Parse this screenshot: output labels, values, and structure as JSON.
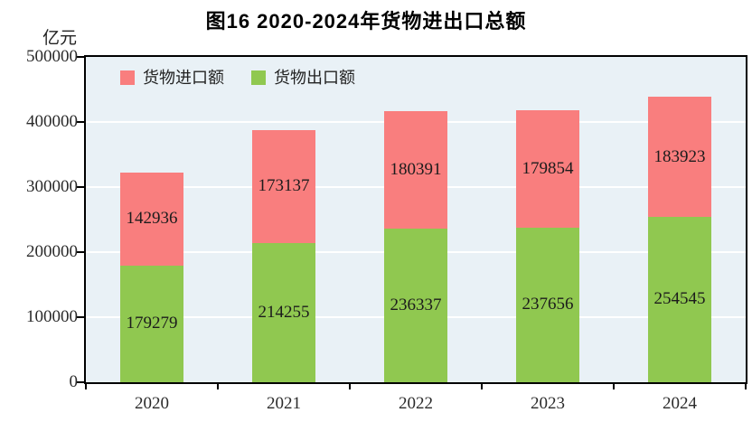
{
  "chart_data": {
    "type": "bar",
    "stacked": true,
    "title": "图16  2020-2024年货物进出口总额",
    "unit_label": "亿元",
    "categories": [
      "2020",
      "2021",
      "2022",
      "2023",
      "2024"
    ],
    "series": [
      {
        "name": "货物出口额",
        "color": "#90c850",
        "values": [
          179279,
          214255,
          236337,
          237656,
          254545
        ]
      },
      {
        "name": "货物进口额",
        "color": "#f97e7e",
        "values": [
          142936,
          173137,
          180391,
          179854,
          183923
        ]
      }
    ],
    "legend": [
      {
        "label": "货物进口额",
        "color": "#f97e7e"
      },
      {
        "label": "货物出口额",
        "color": "#90c850"
      }
    ],
    "ylim": [
      0,
      500000
    ],
    "ytick_step": 100000,
    "yticks": [
      "500000",
      "400000",
      "300000",
      "200000",
      "100000",
      "0"
    ],
    "grid": {
      "horizontal": true,
      "color": "#ffffff"
    },
    "plot_background": "#e9f1f6",
    "axis_color": "#000000"
  }
}
